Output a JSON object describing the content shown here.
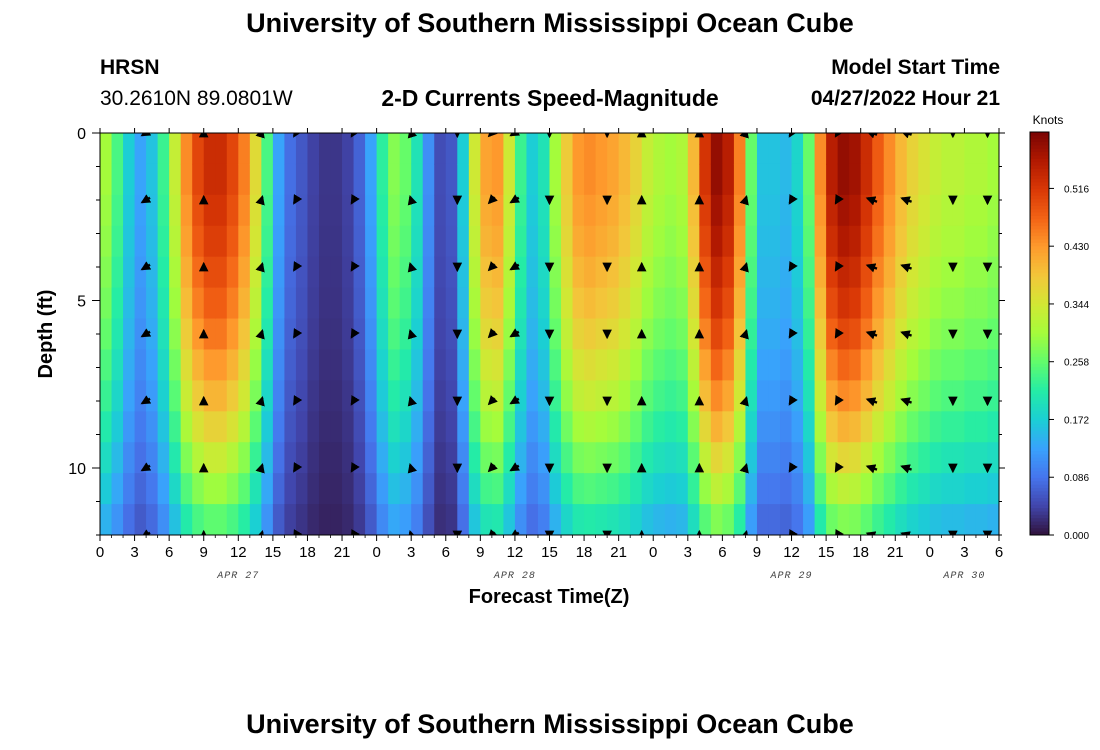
{
  "chart_data": {
    "type": "heatmap",
    "title": "University of Southern Mississippi Ocean Cube",
    "subtitle": "2-D Currents Speed-Magnitude",
    "station": {
      "name": "HRSN",
      "coords": "30.2610N  89.0801W"
    },
    "model_start": {
      "label": "Model Start Time",
      "value": "04/27/2022 Hour 21"
    },
    "xlabel": "Forecast Time(Z)",
    "ylabel": "Depth (ft)",
    "x_tick_labels": [
      "0",
      "3",
      "6",
      "9",
      "12",
      "15",
      "18",
      "21",
      "0",
      "3",
      "6",
      "9",
      "12",
      "15",
      "18",
      "21",
      "0",
      "3",
      "6",
      "9",
      "12",
      "15",
      "18",
      "21",
      "0",
      "3",
      "6"
    ],
    "date_labels": [
      {
        "label": "APR 27",
        "at_hour": 12
      },
      {
        "label": "APR 28",
        "at_hour": 36
      },
      {
        "label": "APR 29",
        "at_hour": 60
      },
      {
        "label": "APR 30",
        "at_hour": 75
      }
    ],
    "xlim_hours": [
      0,
      78
    ],
    "y_ticks": [
      0,
      5,
      10
    ],
    "ylim_ft": [
      0,
      12
    ],
    "colorbar": {
      "title": "Knots",
      "tick_labels": [
        "0.516",
        "0.430",
        "0.344",
        "0.258",
        "0.172",
        "0.086",
        "0.000"
      ],
      "tick_values": [
        0.516,
        0.43,
        0.344,
        0.258,
        0.172,
        0.086,
        0.0
      ],
      "range": [
        0,
        0.6
      ],
      "colors": [
        "#30123b",
        "#4145ab",
        "#4675ed",
        "#39a2fc",
        "#1bcfd4",
        "#24eca6",
        "#61fc6c",
        "#a4fc3b",
        "#d1e834",
        "#f3c63a",
        "#fe9b2d",
        "#f36315",
        "#d93806",
        "#b11901",
        "#7a0403"
      ]
    },
    "surface_speed_profile": {
      "hours": [
        0,
        1,
        2,
        3,
        4,
        5,
        6,
        7,
        8,
        9,
        10,
        11,
        12,
        13,
        14,
        15,
        16,
        17,
        18,
        19,
        20,
        21,
        22,
        23,
        24,
        25,
        26,
        27,
        28,
        29,
        30,
        31,
        32,
        33,
        34,
        35,
        36,
        37,
        38,
        39,
        40,
        41,
        42,
        43,
        44,
        45,
        46,
        47,
        48,
        49,
        50,
        51,
        52,
        53,
        54,
        55,
        56,
        57,
        58,
        59,
        60,
        61,
        62,
        63,
        64,
        65,
        66,
        67,
        68,
        69,
        70,
        71,
        72,
        73,
        74,
        75,
        76,
        77
      ],
      "knots": [
        0.3,
        0.24,
        0.17,
        0.13,
        0.16,
        0.23,
        0.33,
        0.44,
        0.5,
        0.53,
        0.53,
        0.5,
        0.45,
        0.36,
        0.24,
        0.13,
        0.08,
        0.06,
        0.04,
        0.03,
        0.03,
        0.04,
        0.07,
        0.13,
        0.22,
        0.28,
        0.26,
        0.2,
        0.11,
        0.05,
        0.06,
        0.17,
        0.34,
        0.42,
        0.43,
        0.34,
        0.23,
        0.17,
        0.2,
        0.3,
        0.38,
        0.43,
        0.44,
        0.43,
        0.42,
        0.4,
        0.37,
        0.33,
        0.31,
        0.3,
        0.31,
        0.4,
        0.52,
        0.58,
        0.55,
        0.45,
        0.26,
        0.16,
        0.16,
        0.15,
        0.18,
        0.26,
        0.44,
        0.55,
        0.58,
        0.57,
        0.53,
        0.48,
        0.44,
        0.4,
        0.37,
        0.35,
        0.33,
        0.32,
        0.32,
        0.31,
        0.31,
        0.3
      ]
    },
    "depth_factor_ft": [
      1.0,
      1.0,
      0.98,
      0.96,
      0.93,
      0.9,
      0.86,
      0.81,
      0.76,
      0.7,
      0.63,
      0.56,
      0.48
    ],
    "arrow_hours": [
      4,
      9,
      14,
      17,
      22,
      27,
      31,
      34,
      36,
      39,
      44,
      47,
      52,
      56,
      60,
      64,
      67,
      70,
      74,
      77
    ],
    "arrow_depths_ft": [
      0,
      2,
      4,
      6,
      8,
      10,
      12
    ],
    "arrow_directions_deg": [
      225,
      0,
      10,
      200,
      200,
      350,
      180,
      210,
      225,
      180,
      180,
      0,
      0,
      10,
      200,
      200,
      300,
      300,
      180,
      180
    ]
  },
  "footer_title": "University of Southern Mississippi Ocean Cube"
}
